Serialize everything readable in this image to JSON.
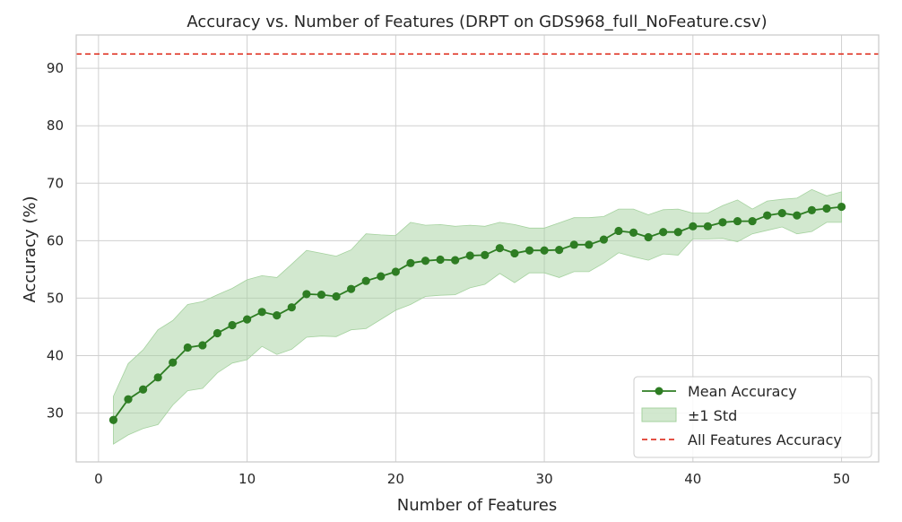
{
  "chart_data": {
    "type": "line",
    "title": "Accuracy vs. Number of Features (DRPT on GDS968_full_NoFeature.csv)",
    "xlabel": "Number of Features",
    "ylabel": "Accuracy (%)",
    "xlim": [
      -1.5,
      52.5
    ],
    "ylim": [
      21.5,
      95.8
    ],
    "xticks": [
      0,
      10,
      20,
      30,
      40,
      50
    ],
    "yticks": [
      30,
      40,
      50,
      60,
      70,
      80,
      90
    ],
    "grid": true,
    "legend_position": "bottom-right",
    "colors": {
      "mean": "#2e7d23",
      "band": "#a5d29f",
      "reference": "#e0392b",
      "grid": "#d0d0d0",
      "frame": "#c8c8c8"
    },
    "series": [
      {
        "name": "Mean Accuracy",
        "x": [
          1,
          2,
          3,
          4,
          5,
          6,
          7,
          8,
          9,
          10,
          11,
          12,
          13,
          14,
          15,
          16,
          17,
          18,
          19,
          20,
          21,
          22,
          23,
          24,
          25,
          26,
          27,
          28,
          29,
          30,
          31,
          32,
          33,
          34,
          35,
          36,
          37,
          38,
          39,
          40,
          41,
          42,
          43,
          44,
          45,
          46,
          47,
          48,
          49,
          50
        ],
        "y": [
          28.8,
          32.4,
          34.1,
          36.2,
          38.8,
          41.4,
          41.8,
          43.9,
          45.3,
          46.3,
          47.6,
          47.0,
          48.4,
          50.7,
          50.6,
          50.3,
          51.6,
          53.0,
          53.8,
          54.6,
          56.1,
          56.5,
          56.7,
          56.6,
          57.4,
          57.5,
          58.7,
          57.8,
          58.3,
          58.3,
          58.4,
          59.3,
          59.3,
          60.2,
          61.7,
          61.4,
          60.6,
          61.5,
          61.5,
          62.5,
          62.5,
          63.2,
          63.4,
          63.4,
          64.4,
          64.8,
          64.4,
          65.3,
          65.6,
          65.9
        ]
      },
      {
        "name": "±1 Std",
        "x": [
          1,
          2,
          3,
          4,
          5,
          6,
          7,
          8,
          9,
          10,
          11,
          12,
          13,
          14,
          15,
          16,
          17,
          18,
          19,
          20,
          21,
          22,
          23,
          24,
          25,
          26,
          27,
          28,
          29,
          30,
          31,
          32,
          33,
          34,
          35,
          36,
          37,
          38,
          39,
          40,
          41,
          42,
          43,
          44,
          45,
          46,
          47,
          48,
          49,
          50
        ],
        "upper": [
          32.9,
          38.6,
          41.0,
          44.5,
          46.1,
          48.9,
          49.4,
          50.6,
          51.7,
          53.2,
          53.9,
          53.6,
          55.9,
          58.3,
          57.8,
          57.3,
          58.4,
          61.2,
          61.0,
          60.9,
          63.2,
          62.7,
          62.8,
          62.5,
          62.7,
          62.5,
          63.2,
          62.8,
          62.2,
          62.2,
          63.1,
          64.0,
          64.0,
          64.2,
          65.5,
          65.5,
          64.5,
          65.4,
          65.5,
          64.8,
          64.8,
          66.1,
          67.1,
          65.5,
          66.9,
          67.2,
          67.4,
          68.9,
          67.8,
          68.5
        ],
        "lower": [
          24.6,
          26.2,
          27.3,
          28.0,
          31.4,
          33.9,
          34.3,
          37.0,
          38.7,
          39.3,
          41.6,
          40.2,
          41.1,
          43.2,
          43.4,
          43.3,
          44.5,
          44.7,
          46.3,
          47.9,
          48.9,
          50.3,
          50.5,
          50.6,
          51.8,
          52.4,
          54.3,
          52.7,
          54.4,
          54.4,
          53.6,
          54.6,
          54.6,
          56.1,
          57.9,
          57.2,
          56.6,
          57.7,
          57.5,
          60.3,
          60.3,
          60.4,
          59.8,
          61.2,
          61.8,
          62.4,
          61.2,
          61.6,
          63.2,
          63.2
        ]
      },
      {
        "name": "All Features Accuracy",
        "y_constant": 92.5
      }
    ]
  }
}
